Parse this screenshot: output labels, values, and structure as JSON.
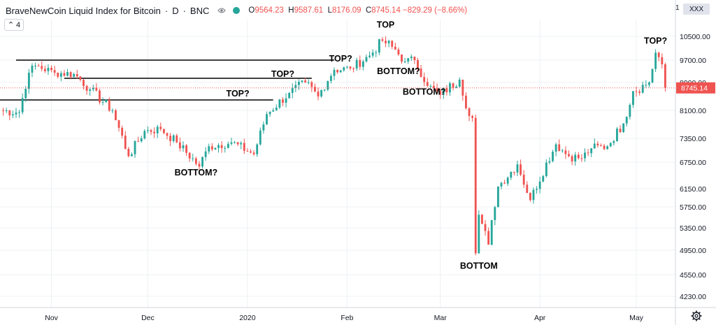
{
  "header": {
    "symbol": "BraveNewCoin Liquid Index for Bitcoin",
    "interval": "D",
    "exchange": "BNC",
    "ohlc": {
      "o_label": "O",
      "o": "9564.23",
      "h_label": "H",
      "h": "9587.61",
      "l_label": "L",
      "l": "8176.09",
      "c_label": "C",
      "c": "8745.14",
      "change": "−829.29 (−8.66%)"
    }
  },
  "controls": {
    "collapse_count": "4",
    "currency_badge": "XXX",
    "scale_marker": "1"
  },
  "colors": {
    "up": "#26a69a",
    "down": "#ef5350",
    "grid": "#eef0f3",
    "price_line": "#ef5350",
    "annotation_line": "#000000"
  },
  "chart_data": {
    "type": "candlestick",
    "title": "BraveNewCoin Liquid Index for Bitcoin · D · BNC",
    "xlabel": "",
    "ylabel": "",
    "x_range": [
      "2019-10-16",
      "2020-05-11"
    ],
    "ylim": [
      4050,
      10950
    ],
    "y_ticks": [
      10500,
      9700,
      8900,
      8100,
      7350,
      6750,
      6150,
      5750,
      5350,
      4950,
      4550,
      4230
    ],
    "y_tick_labels": [
      "10500.00",
      "9700.00",
      "8900.00",
      "8100.00",
      "7350.00",
      "6750.00",
      "6150.00",
      "5750.00",
      "5350.00",
      "4950.00",
      "4550.00",
      "4230.00"
    ],
    "x_ticks": [
      {
        "date": "2019-11-01",
        "label": "Nov"
      },
      {
        "date": "2019-12-01",
        "label": "Dec"
      },
      {
        "date": "2020-01-01",
        "label": "2020"
      },
      {
        "date": "2020-02-01",
        "label": "Feb"
      },
      {
        "date": "2020-03-01",
        "label": "Mar"
      },
      {
        "date": "2020-04-01",
        "label": "Apr"
      },
      {
        "date": "2020-05-01",
        "label": "May"
      }
    ],
    "last_price": 8745.14,
    "last_price_label": "8745.14",
    "grid": true,
    "anchors": [
      {
        "date": "2019-10-16",
        "close": 8100
      },
      {
        "date": "2019-10-22",
        "close": 8050
      },
      {
        "date": "2019-10-25",
        "close": 9250
      },
      {
        "date": "2019-10-27",
        "close": 9500
      },
      {
        "date": "2019-11-02",
        "close": 9250
      },
      {
        "date": "2019-11-08",
        "close": 9200
      },
      {
        "date": "2019-11-13",
        "close": 8700
      },
      {
        "date": "2019-11-20",
        "close": 8100
      },
      {
        "date": "2019-11-25",
        "close": 6900
      },
      {
        "date": "2019-11-30",
        "close": 7550
      },
      {
        "date": "2019-12-05",
        "close": 7600
      },
      {
        "date": "2019-12-10",
        "close": 7250
      },
      {
        "date": "2019-12-17",
        "close": 6650
      },
      {
        "date": "2019-12-20",
        "close": 7150
      },
      {
        "date": "2019-12-27",
        "close": 7250
      },
      {
        "date": "2020-01-03",
        "close": 6950
      },
      {
        "date": "2020-01-07",
        "close": 8000
      },
      {
        "date": "2020-01-14",
        "close": 8600
      },
      {
        "date": "2020-01-19",
        "close": 8900
      },
      {
        "date": "2020-01-23",
        "close": 8500
      },
      {
        "date": "2020-01-28",
        "close": 9350
      },
      {
        "date": "2020-02-02",
        "close": 9400
      },
      {
        "date": "2020-02-08",
        "close": 9850
      },
      {
        "date": "2020-02-12",
        "close": 10350
      },
      {
        "date": "2020-02-15",
        "close": 10150
      },
      {
        "date": "2020-02-19",
        "close": 9650
      },
      {
        "date": "2020-02-22",
        "close": 9700
      },
      {
        "date": "2020-02-26",
        "close": 8800
      },
      {
        "date": "2020-03-01",
        "close": 8550
      },
      {
        "date": "2020-03-07",
        "close": 9000
      },
      {
        "date": "2020-03-10",
        "close": 7950
      },
      {
        "date": "2020-03-11",
        "close": 7900
      },
      {
        "date": "2020-03-12",
        "close": 4900
      },
      {
        "date": "2020-03-13",
        "close": 5600
      },
      {
        "date": "2020-03-16",
        "close": 5050
      },
      {
        "date": "2020-03-19",
        "close": 6200
      },
      {
        "date": "2020-03-25",
        "close": 6700
      },
      {
        "date": "2020-03-29",
        "close": 5900
      },
      {
        "date": "2020-04-06",
        "close": 7200
      },
      {
        "date": "2020-04-10",
        "close": 6900
      },
      {
        "date": "2020-04-14",
        "close": 6850
      },
      {
        "date": "2020-04-17",
        "close": 7100
      },
      {
        "date": "2020-04-22",
        "close": 7150
      },
      {
        "date": "2020-04-27",
        "close": 7750
      },
      {
        "date": "2020-04-30",
        "close": 8650
      },
      {
        "date": "2020-05-05",
        "close": 8900
      },
      {
        "date": "2020-05-07",
        "close": 9950
      },
      {
        "date": "2020-05-08",
        "close": 9800
      },
      {
        "date": "2020-05-09",
        "close": 9550
      },
      {
        "date": "2020-05-10",
        "close": 8745.14
      }
    ],
    "annotations": [
      {
        "text": "TOP?",
        "date": "2019-12-29",
        "price": 8500
      },
      {
        "text": "TOP?",
        "date": "2020-01-12",
        "price": 9100
      },
      {
        "text": "TOP?",
        "date": "2020-01-30",
        "price": 9650
      },
      {
        "text": "TOP",
        "date": "2020-02-13",
        "price": 10800
      },
      {
        "text": "BOTTOM?",
        "date": "2019-12-16",
        "price": 6450
      },
      {
        "text": "BOTTOM?",
        "date": "2020-02-17",
        "price": 9200
      },
      {
        "text": "BOTTOM?",
        "date": "2020-02-25",
        "price": 8550
      },
      {
        "text": "BOTTOM",
        "date": "2020-03-13",
        "price": 4650
      },
      {
        "text": "TOP?",
        "date": "2020-05-07",
        "price": 10250
      }
    ],
    "horizontal_lines": [
      {
        "price": 9700,
        "from": "2019-10-21",
        "to": "2020-01-28"
      },
      {
        "price": 9050,
        "from": "2019-11-05",
        "to": "2020-01-21"
      },
      {
        "price": 8400,
        "from": "2019-10-16",
        "to": "2020-01-09"
      }
    ]
  }
}
